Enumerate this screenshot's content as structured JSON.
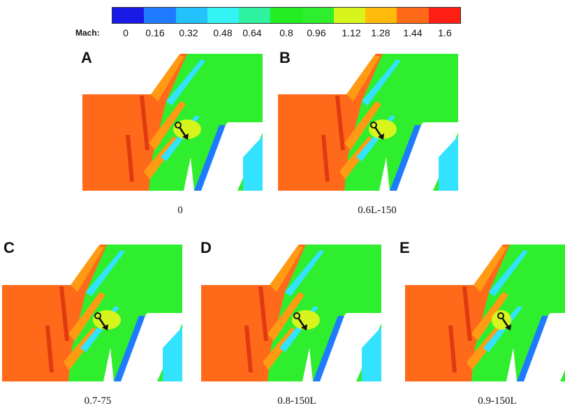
{
  "colorbar": {
    "label": "Mach:",
    "colors": [
      "#1a1ae6",
      "#1e7bff",
      "#23c2ff",
      "#33f2f2",
      "#2ef2a0",
      "#22ee22",
      "#2eee2e",
      "#d7f51c",
      "#ffba0a",
      "#ff6a1a",
      "#ff1e14"
    ],
    "ticks": [
      "0",
      "0.16",
      "0.32",
      "0.48",
      "0.64",
      "0.8",
      "0.96",
      "1.12",
      "1.28",
      "1.44",
      "1.6"
    ]
  },
  "panels": [
    {
      "letter": "A",
      "caption": "0"
    },
    {
      "letter": "B",
      "caption": "0.6L-150"
    },
    {
      "letter": "C",
      "caption": "0.7-75"
    },
    {
      "letter": "D",
      "caption": "0.8-150L"
    },
    {
      "letter": "E",
      "caption": "0.9-150L"
    }
  ],
  "field_colors": {
    "supersonic": "#ff6a1a",
    "orange_band": "#ff9a12",
    "yellow": "#d7f51c",
    "green": "#2eee2e",
    "cyan": "#33e2ff",
    "blue": "#1e7bff",
    "arrow": "#111111"
  }
}
